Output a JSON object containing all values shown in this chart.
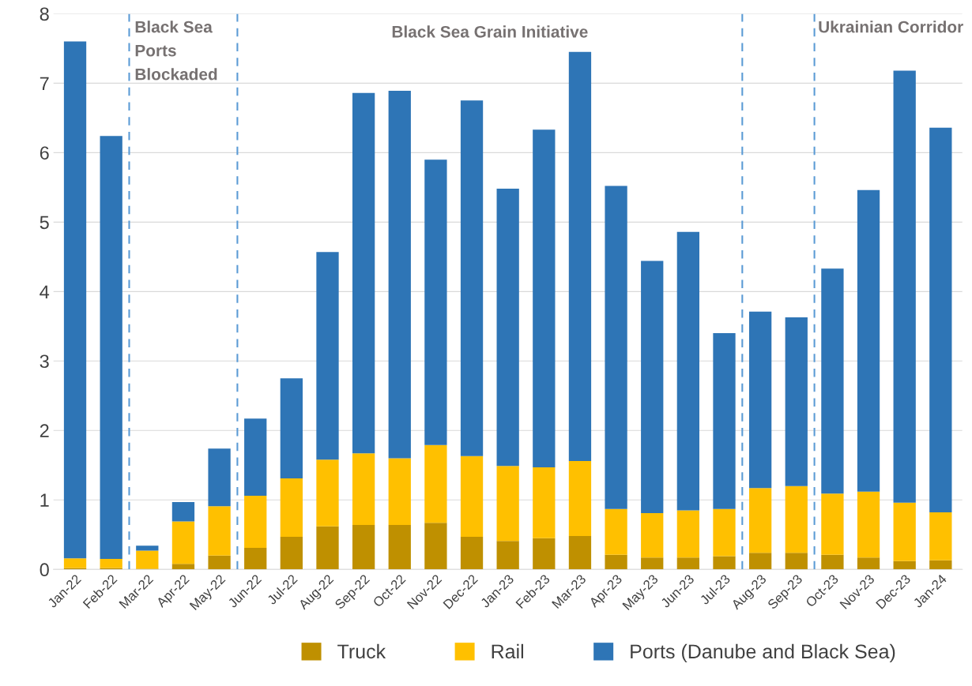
{
  "chart_data": {
    "type": "bar",
    "stacked": true,
    "categories": [
      "Jan-22",
      "Feb-22",
      "Mar-22",
      "Apr-22",
      "May-22",
      "Jun-22",
      "Jul-22",
      "Aug-22",
      "Sep-22",
      "Oct-22",
      "Nov-22",
      "Dec-22",
      "Jan-23",
      "Feb-23",
      "Mar-23",
      "Apr-23",
      "May-23",
      "Jun-23",
      "Jul-23",
      "Aug-23",
      "Sep-23",
      "Oct-23",
      "Nov-23",
      "Dec-23",
      "Jan-24"
    ],
    "series": [
      {
        "name": "Truck",
        "color": "#bf9000",
        "values": [
          0.02,
          0.02,
          0.01,
          0.08,
          0.2,
          0.31,
          0.47,
          0.62,
          0.64,
          0.64,
          0.67,
          0.47,
          0.41,
          0.45,
          0.48,
          0.21,
          0.17,
          0.17,
          0.19,
          0.24,
          0.24,
          0.21,
          0.17,
          0.12,
          0.13
        ]
      },
      {
        "name": "Rail",
        "color": "#ffc000",
        "values": [
          0.14,
          0.13,
          0.26,
          0.61,
          0.71,
          0.75,
          0.84,
          0.96,
          1.03,
          0.96,
          1.12,
          1.16,
          1.08,
          1.02,
          1.08,
          0.66,
          0.64,
          0.68,
          0.68,
          0.93,
          0.96,
          0.88,
          0.95,
          0.84,
          0.69
        ]
      },
      {
        "name": "Ports (Danube and Black Sea)",
        "color": "#2e75b6",
        "values": [
          7.44,
          6.09,
          0.07,
          0.28,
          0.83,
          1.11,
          1.44,
          2.99,
          5.19,
          5.29,
          4.11,
          5.12,
          3.99,
          4.86,
          5.89,
          4.65,
          3.63,
          4.01,
          2.53,
          2.54,
          2.43,
          3.24,
          4.34,
          6.22,
          5.54
        ]
      }
    ],
    "ylim": [
      0,
      8
    ],
    "yticks": [
      0,
      1,
      2,
      3,
      4,
      5,
      6,
      7,
      8
    ],
    "grid": "y",
    "legend": "bottom",
    "annotations": [
      "Black Sea\nPorts\nBlockaded",
      "Black Sea Grain Initiative",
      "Ukrainian Corridor"
    ]
  }
}
